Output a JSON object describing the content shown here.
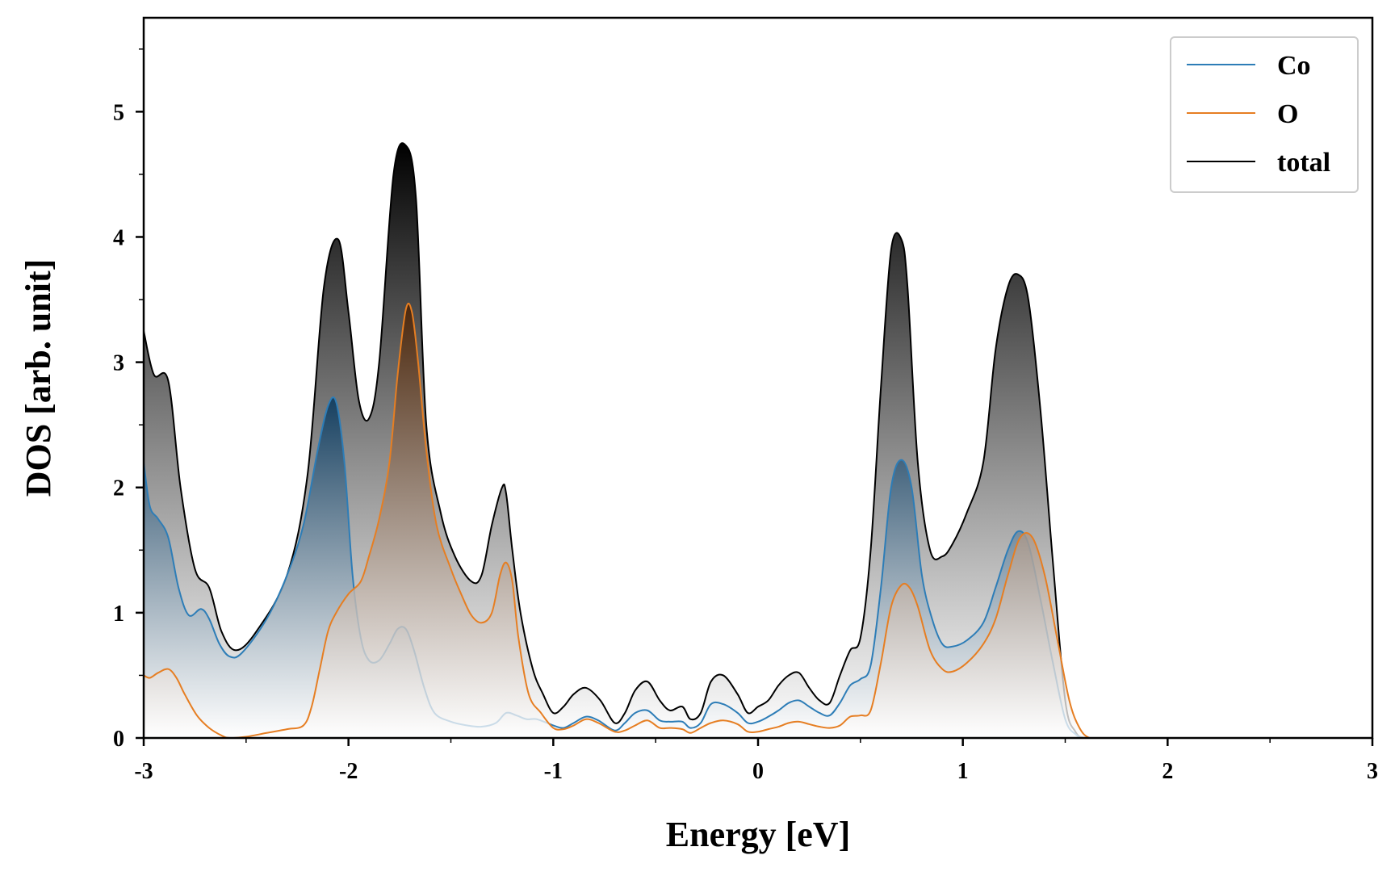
{
  "chart_data": {
    "type": "area",
    "xlabel": "Energy [eV]",
    "ylabel": "DOS [arb. unit]",
    "xlim": [
      -3,
      3
    ],
    "ylim": [
      0,
      5.75
    ],
    "xticks": [
      -3,
      -2,
      -1,
      0,
      1,
      2,
      3
    ],
    "xtick_labels": [
      "-3",
      "-2",
      "-1",
      "0",
      "1",
      "2",
      "3"
    ],
    "yticks": [
      0,
      1,
      2,
      3,
      4,
      5
    ],
    "ytick_labels": [
      "0",
      "1",
      "2",
      "3",
      "4",
      "5"
    ],
    "grid": false,
    "legend_position": "top-right",
    "series": [
      {
        "name": "total",
        "color": "#000000",
        "x": [
          -3.0,
          -2.95,
          -2.88,
          -2.82,
          -2.75,
          -2.68,
          -2.62,
          -2.55,
          -2.45,
          -2.3,
          -2.2,
          -2.12,
          -2.05,
          -2.0,
          -1.95,
          -1.9,
          -1.85,
          -1.78,
          -1.72,
          -1.67,
          -1.62,
          -1.55,
          -1.48,
          -1.4,
          -1.35,
          -1.3,
          -1.25,
          -1.23,
          -1.2,
          -1.16,
          -1.1,
          -1.05,
          -1.0,
          -0.95,
          -0.9,
          -0.84,
          -0.77,
          -0.7,
          -0.65,
          -0.6,
          -0.54,
          -0.48,
          -0.43,
          -0.37,
          -0.33,
          -0.28,
          -0.23,
          -0.17,
          -0.1,
          -0.05,
          0.0,
          0.05,
          0.1,
          0.15,
          0.2,
          0.25,
          0.3,
          0.35,
          0.4,
          0.45,
          0.5,
          0.55,
          0.6,
          0.65,
          0.7,
          0.73,
          0.78,
          0.84,
          0.9,
          0.95,
          1.02,
          1.1,
          1.16,
          1.22,
          1.27,
          1.32,
          1.38,
          1.44,
          1.5,
          1.55,
          1.6,
          1.7,
          2.0,
          2.5,
          3.0
        ],
        "y": [
          3.25,
          2.9,
          2.85,
          2.0,
          1.35,
          1.2,
          0.85,
          0.7,
          0.85,
          1.3,
          2.1,
          3.6,
          3.98,
          3.4,
          2.7,
          2.55,
          3.0,
          4.5,
          4.73,
          4.3,
          2.5,
          1.8,
          1.45,
          1.25,
          1.3,
          1.7,
          2.0,
          1.95,
          1.5,
          1.0,
          0.55,
          0.35,
          0.2,
          0.25,
          0.35,
          0.4,
          0.3,
          0.12,
          0.2,
          0.38,
          0.45,
          0.3,
          0.22,
          0.25,
          0.15,
          0.2,
          0.45,
          0.5,
          0.35,
          0.2,
          0.25,
          0.3,
          0.42,
          0.5,
          0.52,
          0.4,
          0.3,
          0.28,
          0.5,
          0.7,
          0.8,
          1.5,
          2.8,
          3.9,
          3.98,
          3.6,
          2.2,
          1.5,
          1.45,
          1.55,
          1.8,
          2.2,
          3.1,
          3.6,
          3.7,
          3.5,
          2.6,
          1.4,
          0.3,
          0.05,
          0.0,
          0.0,
          0.0,
          0.0,
          0.0
        ]
      },
      {
        "name": "Co",
        "color": "#2d7db7",
        "x": [
          -3.0,
          -2.97,
          -2.93,
          -2.88,
          -2.83,
          -2.78,
          -2.72,
          -2.68,
          -2.63,
          -2.58,
          -2.52,
          -2.4,
          -2.3,
          -2.22,
          -2.15,
          -2.1,
          -2.06,
          -2.02,
          -1.98,
          -1.94,
          -1.9,
          -1.85,
          -1.8,
          -1.76,
          -1.72,
          -1.68,
          -1.63,
          -1.58,
          -1.5,
          -1.42,
          -1.35,
          -1.28,
          -1.23,
          -1.18,
          -1.13,
          -1.08,
          -1.0,
          -0.95,
          -0.9,
          -0.84,
          -0.78,
          -0.7,
          -0.65,
          -0.6,
          -0.54,
          -0.48,
          -0.43,
          -0.37,
          -0.33,
          -0.28,
          -0.23,
          -0.17,
          -0.1,
          -0.05,
          0.0,
          0.05,
          0.1,
          0.15,
          0.2,
          0.25,
          0.3,
          0.35,
          0.4,
          0.45,
          0.5,
          0.55,
          0.6,
          0.65,
          0.7,
          0.75,
          0.8,
          0.85,
          0.9,
          0.95,
          1.02,
          1.1,
          1.16,
          1.22,
          1.27,
          1.32,
          1.38,
          1.44,
          1.5,
          1.55,
          1.6,
          1.7,
          2.0,
          2.5,
          3.0
        ],
        "y": [
          2.2,
          1.85,
          1.75,
          1.6,
          1.2,
          0.98,
          1.03,
          0.95,
          0.75,
          0.65,
          0.68,
          0.95,
          1.3,
          1.7,
          2.3,
          2.65,
          2.68,
          2.2,
          1.3,
          0.8,
          0.62,
          0.62,
          0.75,
          0.87,
          0.87,
          0.7,
          0.4,
          0.2,
          0.13,
          0.1,
          0.09,
          0.12,
          0.2,
          0.18,
          0.15,
          0.15,
          0.1,
          0.08,
          0.12,
          0.17,
          0.14,
          0.06,
          0.12,
          0.2,
          0.22,
          0.14,
          0.13,
          0.13,
          0.08,
          0.12,
          0.27,
          0.27,
          0.2,
          0.12,
          0.13,
          0.17,
          0.22,
          0.28,
          0.3,
          0.25,
          0.2,
          0.18,
          0.28,
          0.42,
          0.47,
          0.58,
          1.2,
          2.0,
          2.22,
          2.0,
          1.3,
          0.95,
          0.75,
          0.73,
          0.78,
          0.92,
          1.2,
          1.5,
          1.65,
          1.55,
          1.1,
          0.6,
          0.15,
          0.03,
          0.0,
          0.0,
          0.0,
          0.0,
          0.0
        ]
      },
      {
        "name": "O",
        "color": "#e67e22",
        "x": [
          -3.0,
          -2.97,
          -2.93,
          -2.88,
          -2.84,
          -2.8,
          -2.74,
          -2.68,
          -2.62,
          -2.58,
          -2.5,
          -2.4,
          -2.3,
          -2.22,
          -2.18,
          -2.14,
          -2.1,
          -2.06,
          -2.0,
          -1.94,
          -1.9,
          -1.85,
          -1.8,
          -1.76,
          -1.72,
          -1.69,
          -1.66,
          -1.62,
          -1.57,
          -1.5,
          -1.45,
          -1.4,
          -1.35,
          -1.3,
          -1.26,
          -1.23,
          -1.2,
          -1.17,
          -1.12,
          -1.06,
          -1.0,
          -0.95,
          -0.9,
          -0.84,
          -0.78,
          -0.7,
          -0.65,
          -0.6,
          -0.54,
          -0.48,
          -0.43,
          -0.37,
          -0.33,
          -0.28,
          -0.23,
          -0.17,
          -0.1,
          -0.05,
          0.0,
          0.05,
          0.1,
          0.15,
          0.2,
          0.25,
          0.3,
          0.35,
          0.4,
          0.45,
          0.5,
          0.55,
          0.6,
          0.65,
          0.7,
          0.74,
          0.78,
          0.84,
          0.9,
          0.95,
          1.02,
          1.1,
          1.16,
          1.22,
          1.28,
          1.34,
          1.4,
          1.46,
          1.52,
          1.57,
          1.62,
          1.7,
          2.0,
          2.5,
          3.0
        ],
        "y": [
          0.5,
          0.48,
          0.52,
          0.55,
          0.48,
          0.35,
          0.18,
          0.08,
          0.02,
          0.0,
          0.01,
          0.04,
          0.07,
          0.1,
          0.25,
          0.55,
          0.85,
          1.0,
          1.15,
          1.25,
          1.45,
          1.75,
          2.2,
          2.9,
          3.42,
          3.4,
          3.0,
          2.3,
          1.7,
          1.35,
          1.15,
          0.98,
          0.92,
          1.0,
          1.3,
          1.4,
          1.25,
          0.8,
          0.35,
          0.2,
          0.08,
          0.07,
          0.1,
          0.15,
          0.12,
          0.05,
          0.06,
          0.1,
          0.14,
          0.08,
          0.08,
          0.07,
          0.04,
          0.08,
          0.12,
          0.14,
          0.11,
          0.05,
          0.05,
          0.07,
          0.09,
          0.12,
          0.13,
          0.11,
          0.09,
          0.08,
          0.1,
          0.17,
          0.18,
          0.22,
          0.6,
          1.05,
          1.22,
          1.2,
          1.05,
          0.7,
          0.55,
          0.53,
          0.6,
          0.75,
          0.95,
          1.3,
          1.6,
          1.6,
          1.3,
          0.8,
          0.3,
          0.08,
          0.0,
          0.0,
          0.0,
          0.0,
          0.0
        ]
      }
    ],
    "legend": [
      {
        "name": "Co",
        "color": "#2d7db7"
      },
      {
        "name": "O",
        "color": "#e67e22"
      },
      {
        "name": "total",
        "color": "#000000"
      }
    ]
  }
}
